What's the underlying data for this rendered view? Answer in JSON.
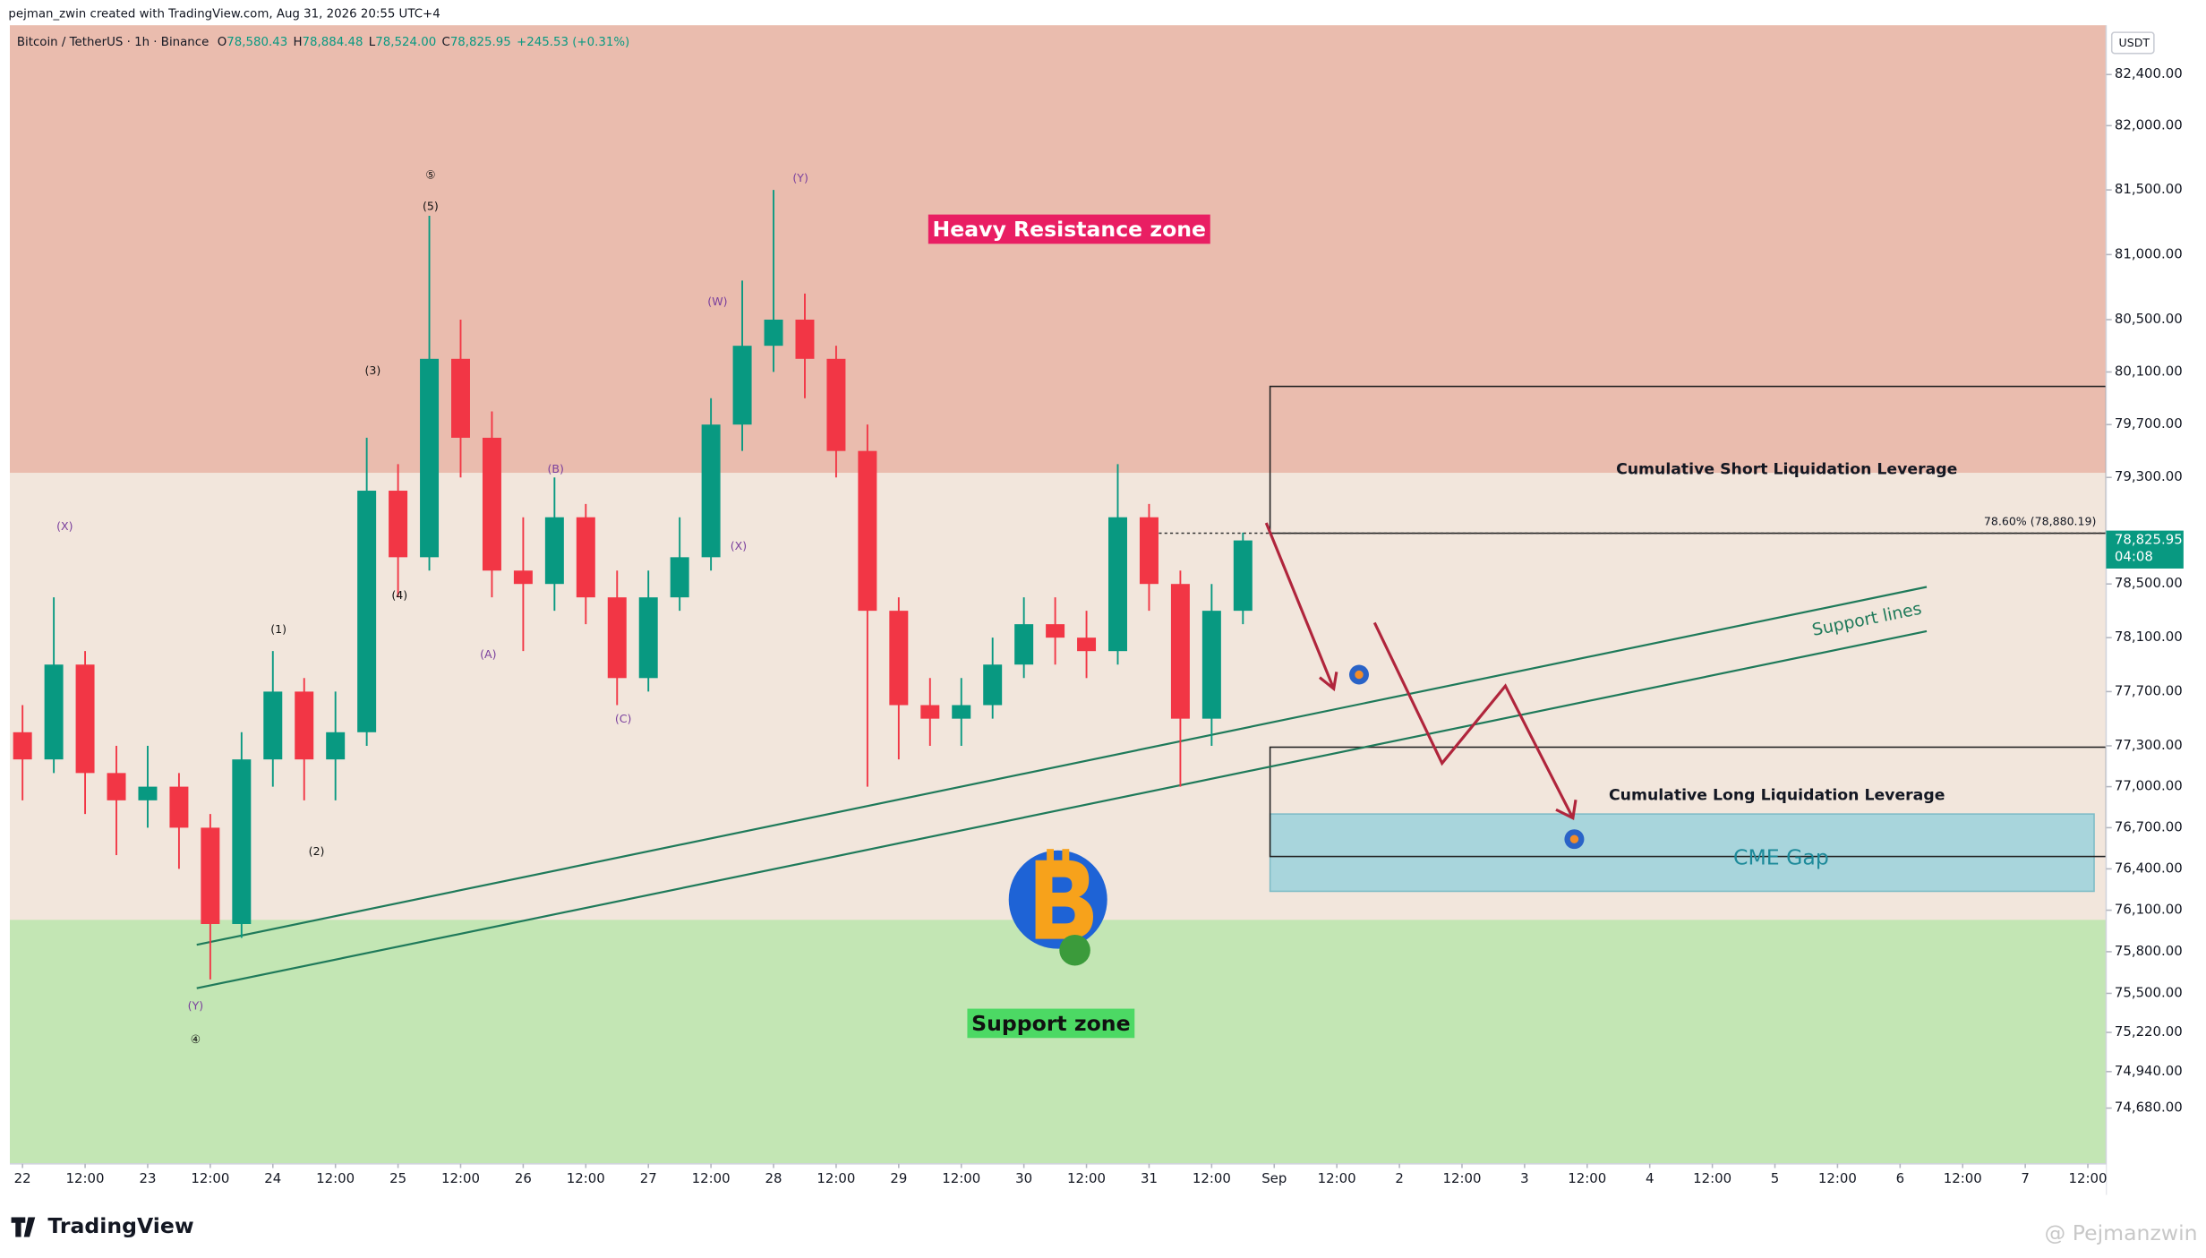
{
  "header": {
    "author_line": "pejman_zwin created with TradingView.com, Aug 31, 2026 20:55 UTC+4",
    "symbol": "Bitcoin / TetherUS · 1h · Binance",
    "ohlc": [
      {
        "key": "O",
        "value": "78,580.43"
      },
      {
        "key": "H",
        "value": "78,884.48"
      },
      {
        "key": "L",
        "value": "78,524.00"
      },
      {
        "key": "C",
        "value": "78,825.95"
      }
    ],
    "change": "+245.53 (+0.31%)"
  },
  "footer": {
    "brand": "TradingView",
    "watermark": "@ Pejmanzwin"
  },
  "chart_data": {
    "type": "candlestick",
    "currency": "USDT",
    "log": true,
    "up_color": "#089981",
    "down_color": "#f23645",
    "x": [
      0,
      6,
      12,
      18,
      24,
      30,
      36,
      42,
      48,
      54,
      60,
      66,
      72,
      78,
      84,
      90,
      96,
      102,
      108,
      114,
      120,
      126,
      132,
      138,
      144,
      150,
      156,
      162,
      168,
      174,
      180,
      186,
      192,
      198,
      204,
      210,
      216,
      222,
      228,
      234
    ],
    "open": [
      77400,
      77200,
      77900,
      77100,
      76900,
      77000,
      76700,
      76000,
      77200,
      77700,
      77200,
      77400,
      79200,
      78700,
      80200,
      79600,
      78600,
      78500,
      79000,
      78400,
      77800,
      78400,
      78700,
      79700,
      80300,
      80500,
      80200,
      79500,
      78300,
      77600,
      77500,
      77600,
      77900,
      78200,
      78100,
      78000,
      79000,
      78500,
      77500,
      78300
    ],
    "high": [
      77600,
      78400,
      78000,
      77300,
      77300,
      77100,
      76800,
      77400,
      78000,
      77800,
      77700,
      79600,
      79400,
      81300,
      80500,
      79800,
      79000,
      79300,
      79100,
      78600,
      78600,
      79000,
      79900,
      80800,
      81500,
      80700,
      80300,
      79700,
      78400,
      77800,
      77800,
      78100,
      78400,
      78400,
      78300,
      79400,
      79100,
      78600,
      78500,
      78884.48
    ],
    "low": [
      76900,
      77100,
      76800,
      76500,
      76700,
      76400,
      75600,
      75900,
      77000,
      76900,
      76900,
      77300,
      78400,
      78600,
      79300,
      78400,
      78000,
      78300,
      78200,
      77600,
      77700,
      78300,
      78600,
      79500,
      80100,
      79900,
      79300,
      77000,
      77200,
      77300,
      77300,
      77500,
      77800,
      77900,
      77800,
      77900,
      78300,
      77000,
      77300,
      78200
    ],
    "close": [
      77200,
      77900,
      77100,
      76900,
      77000,
      76700,
      76000,
      77200,
      77700,
      77200,
      77400,
      79200,
      78700,
      80200,
      79600,
      78600,
      78500,
      79000,
      78400,
      77800,
      78400,
      78700,
      79700,
      80300,
      80500,
      80200,
      79500,
      78300,
      77600,
      77500,
      77600,
      77900,
      78200,
      78100,
      78000,
      79000,
      78500,
      77500,
      78300,
      78825.95
    ],
    "xlim": [
      -2.43,
      399.5
    ],
    "ylim": [
      74285,
      82787
    ],
    "xticks": [
      {
        "value": 0,
        "label": "22"
      },
      {
        "value": 12,
        "label": "12:00"
      },
      {
        "value": 24,
        "label": "23"
      },
      {
        "value": 36,
        "label": "12:00"
      },
      {
        "value": 48,
        "label": "24"
      },
      {
        "value": 60,
        "label": "12:00"
      },
      {
        "value": 72,
        "label": "25"
      },
      {
        "value": 84,
        "label": "12:00"
      },
      {
        "value": 96,
        "label": "26"
      },
      {
        "value": 108,
        "label": "12:00"
      },
      {
        "value": 120,
        "label": "27"
      },
      {
        "value": 132,
        "label": "12:00"
      },
      {
        "value": 144,
        "label": "28"
      },
      {
        "value": 156,
        "label": "12:00"
      },
      {
        "value": 168,
        "label": "29"
      },
      {
        "value": 180,
        "label": "12:00"
      },
      {
        "value": 192,
        "label": "30"
      },
      {
        "value": 204,
        "label": "12:00"
      },
      {
        "value": 216,
        "label": "31"
      },
      {
        "value": 228,
        "label": "12:00"
      },
      {
        "value": 240,
        "label": "Sep"
      },
      {
        "value": 252,
        "label": "12:00"
      },
      {
        "value": 264,
        "label": "2"
      },
      {
        "value": 276,
        "label": "12:00"
      },
      {
        "value": 288,
        "label": "3"
      },
      {
        "value": 300,
        "label": "12:00"
      },
      {
        "value": 312,
        "label": "4"
      },
      {
        "value": 324,
        "label": "12:00"
      },
      {
        "value": 336,
        "label": "5"
      },
      {
        "value": 348,
        "label": "12:00"
      },
      {
        "value": 360,
        "label": "6"
      },
      {
        "value": 372,
        "label": "12:00"
      },
      {
        "value": 384,
        "label": "7"
      },
      {
        "value": 396,
        "label": "12:00"
      }
    ],
    "yticks": [
      {
        "value": 82400,
        "label": "82,400.00"
      },
      {
        "value": 82000,
        "label": "82,000.00"
      },
      {
        "value": 81500,
        "label": "81,500.00"
      },
      {
        "value": 81000,
        "label": "81,000.00"
      },
      {
        "value": 80500,
        "label": "80,500.00"
      },
      {
        "value": 80100,
        "label": "80,100.00"
      },
      {
        "value": 79700,
        "label": "79,700.00"
      },
      {
        "value": 79300,
        "label": "79,300.00"
      },
      {
        "value": 78500,
        "label": "78,500.00"
      },
      {
        "value": 78100,
        "label": "78,100.00"
      },
      {
        "value": 77700,
        "label": "77,700.00"
      },
      {
        "value": 77300,
        "label": "77,300.00"
      },
      {
        "value": 77000,
        "label": "77,000.00"
      },
      {
        "value": 76700,
        "label": "76,700.00"
      },
      {
        "value": 76400,
        "label": "76,400.00"
      },
      {
        "value": 76100,
        "label": "76,100.00"
      },
      {
        "value": 75800,
        "label": "75,800.00"
      },
      {
        "value": 75500,
        "label": "75,500.00"
      },
      {
        "value": 75220,
        "label": "75,220.00"
      },
      {
        "value": 74940,
        "label": "74,940.00"
      },
      {
        "value": 74680,
        "label": "74,680.00"
      }
    ],
    "last_price": {
      "value": 78825.95,
      "label": "78,825.95",
      "countdown": "04:08",
      "color": "#089981"
    },
    "zones": [
      {
        "label": "Heavy Resistance zone",
        "range": [
          79335,
          82787
        ],
        "color": "#eabcae",
        "label_color": "#e91e63"
      },
      {
        "label": "Support zone",
        "range": [
          74285,
          76030
        ],
        "color": "#c3e6b4",
        "label_color": "#4cd964"
      }
    ],
    "boxes": [
      {
        "label": "Cumulative Short Liquidation Leverage",
        "x": [
          239.2,
          399.5
        ],
        "y": [
          78880,
          79990
        ]
      },
      {
        "label": "Cumulative Long Liquidation Leverage",
        "x": [
          239.2,
          399.5
        ],
        "y": [
          76490,
          77290
        ]
      }
    ],
    "cme_gap": {
      "label": "CME Gap",
      "x": [
        239.2,
        397.2
      ],
      "y": [
        76237,
        76800
      ],
      "color": "#a8d5dc"
    },
    "support_lines": {
      "label": "Support lines",
      "color": "#1f7a5a",
      "lines": [
        {
          "x": [
            33.4,
            365.1
          ],
          "y": [
            75850,
            78478
          ]
        },
        {
          "x": [
            33.4,
            365.1
          ],
          "y": [
            75537,
            78148
          ]
        }
      ]
    },
    "fib": {
      "label": "78.60% (78,880.19)",
      "value": 78880.19,
      "x0": 216.8
    },
    "wave_labels": [
      "⑤",
      "(5)",
      "(3)",
      "(4)",
      "(1)",
      "(2)",
      "(Y)",
      "④",
      "(X)",
      "(B)",
      "(A)",
      "(C)",
      "(W)",
      "(Y)",
      "(X)"
    ]
  }
}
